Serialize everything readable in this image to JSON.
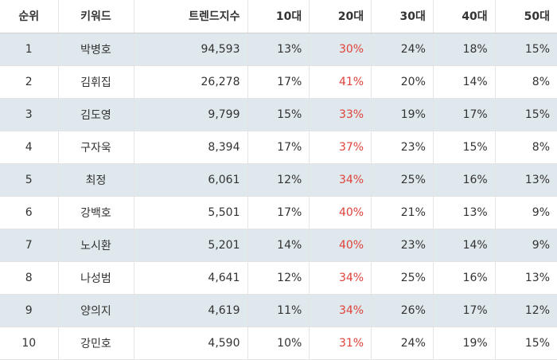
{
  "table": {
    "headers": {
      "rank": "순위",
      "keyword": "키워드",
      "trend": "트렌드지수",
      "age10": "10대",
      "age20": "20대",
      "age30": "30대",
      "age40": "40대",
      "age50": "50대"
    },
    "highlight_color": "#e0413a",
    "stripe_color": "#dfe8ec",
    "rows": [
      {
        "rank": "1",
        "keyword": "박병호",
        "trend": "94,593",
        "age10": "13%",
        "age20": "30%",
        "age30": "24%",
        "age40": "18%",
        "age50": "15%"
      },
      {
        "rank": "2",
        "keyword": "김휘집",
        "trend": "26,278",
        "age10": "17%",
        "age20": "41%",
        "age30": "20%",
        "age40": "14%",
        "age50": "8%"
      },
      {
        "rank": "3",
        "keyword": "김도영",
        "trend": "9,799",
        "age10": "15%",
        "age20": "33%",
        "age30": "19%",
        "age40": "17%",
        "age50": "15%"
      },
      {
        "rank": "4",
        "keyword": "구자욱",
        "trend": "8,394",
        "age10": "17%",
        "age20": "37%",
        "age30": "23%",
        "age40": "15%",
        "age50": "8%"
      },
      {
        "rank": "5",
        "keyword": "최정",
        "trend": "6,061",
        "age10": "12%",
        "age20": "34%",
        "age30": "25%",
        "age40": "16%",
        "age50": "13%"
      },
      {
        "rank": "6",
        "keyword": "강백호",
        "trend": "5,501",
        "age10": "17%",
        "age20": "40%",
        "age30": "21%",
        "age40": "13%",
        "age50": "9%"
      },
      {
        "rank": "7",
        "keyword": "노시환",
        "trend": "5,201",
        "age10": "14%",
        "age20": "40%",
        "age30": "23%",
        "age40": "14%",
        "age50": "9%"
      },
      {
        "rank": "8",
        "keyword": "나성범",
        "trend": "4,641",
        "age10": "12%",
        "age20": "34%",
        "age30": "25%",
        "age40": "16%",
        "age50": "13%"
      },
      {
        "rank": "9",
        "keyword": "양의지",
        "trend": "4,619",
        "age10": "11%",
        "age20": "34%",
        "age30": "26%",
        "age40": "17%",
        "age50": "12%"
      },
      {
        "rank": "10",
        "keyword": "강민호",
        "trend": "4,590",
        "age10": "10%",
        "age20": "31%",
        "age30": "24%",
        "age40": "19%",
        "age50": "15%"
      }
    ]
  }
}
